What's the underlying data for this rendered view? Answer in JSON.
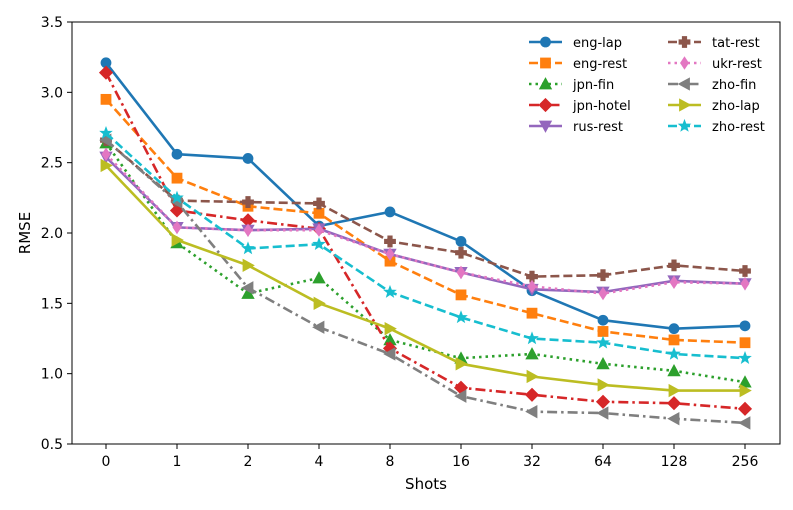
{
  "chart_data": {
    "type": "line",
    "title": "",
    "xlabel": "Shots",
    "ylabel": "RMSE",
    "categories": [
      "0",
      "1",
      "2",
      "4",
      "8",
      "16",
      "32",
      "64",
      "128",
      "256"
    ],
    "ylim": [
      0.5,
      3.5
    ],
    "yticks": [
      "0.5",
      "1.0",
      "1.5",
      "2.0",
      "2.5",
      "3.0",
      "3.5"
    ],
    "grid": false,
    "legend_position": "top-right",
    "series": [
      {
        "name": "eng-lap",
        "color": "#1f77b4",
        "linestyle": "solid",
        "marker": "circle",
        "values": [
          3.21,
          2.56,
          2.53,
          2.05,
          2.15,
          1.94,
          1.59,
          1.38,
          1.32,
          1.34
        ]
      },
      {
        "name": "eng-rest",
        "color": "#ff7f0e",
        "linestyle": "dashed",
        "marker": "square",
        "values": [
          2.95,
          2.39,
          2.19,
          2.14,
          1.8,
          1.56,
          1.43,
          1.3,
          1.24,
          1.22
        ]
      },
      {
        "name": "jpn-fin",
        "color": "#2ca02c",
        "linestyle": "dotted",
        "marker": "triangle-up",
        "values": [
          2.64,
          1.93,
          1.57,
          1.68,
          1.24,
          1.11,
          1.14,
          1.07,
          1.02,
          0.94
        ]
      },
      {
        "name": "jpn-hotel",
        "color": "#d62728",
        "linestyle": "dashdot",
        "marker": "diamond",
        "values": [
          3.14,
          2.16,
          2.09,
          2.03,
          1.18,
          0.9,
          0.85,
          0.8,
          0.79,
          0.75
        ]
      },
      {
        "name": "rus-rest",
        "color": "#9467bd",
        "linestyle": "solid",
        "marker": "triangle-down",
        "values": [
          2.54,
          2.04,
          2.02,
          2.03,
          1.85,
          1.72,
          1.6,
          1.58,
          1.66,
          1.64
        ]
      },
      {
        "name": "tat-rest",
        "color": "#8c564b",
        "linestyle": "dashed",
        "marker": "plus",
        "values": [
          2.66,
          2.23,
          2.22,
          2.21,
          1.94,
          1.86,
          1.69,
          1.7,
          1.77,
          1.73
        ]
      },
      {
        "name": "ukr-rest",
        "color": "#e377c2",
        "linestyle": "dotted",
        "marker": "thin-diamond",
        "values": [
          2.56,
          2.04,
          2.02,
          2.02,
          1.85,
          1.72,
          1.62,
          1.57,
          1.65,
          1.64
        ]
      },
      {
        "name": "zho-fin",
        "color": "#7f7f7f",
        "linestyle": "dashdot",
        "marker": "triangle-left",
        "values": [
          2.66,
          2.22,
          1.61,
          1.33,
          1.14,
          0.84,
          0.73,
          0.72,
          0.68,
          0.65
        ]
      },
      {
        "name": "zho-lap",
        "color": "#bcbd22",
        "linestyle": "solid",
        "marker": "triangle-right",
        "values": [
          2.48,
          1.95,
          1.77,
          1.5,
          1.32,
          1.07,
          0.98,
          0.92,
          0.88,
          0.88
        ]
      },
      {
        "name": "zho-rest",
        "color": "#17becf",
        "linestyle": "dashed",
        "marker": "star",
        "values": [
          2.71,
          2.25,
          1.89,
          1.92,
          1.58,
          1.4,
          1.25,
          1.22,
          1.14,
          1.11
        ]
      }
    ]
  }
}
